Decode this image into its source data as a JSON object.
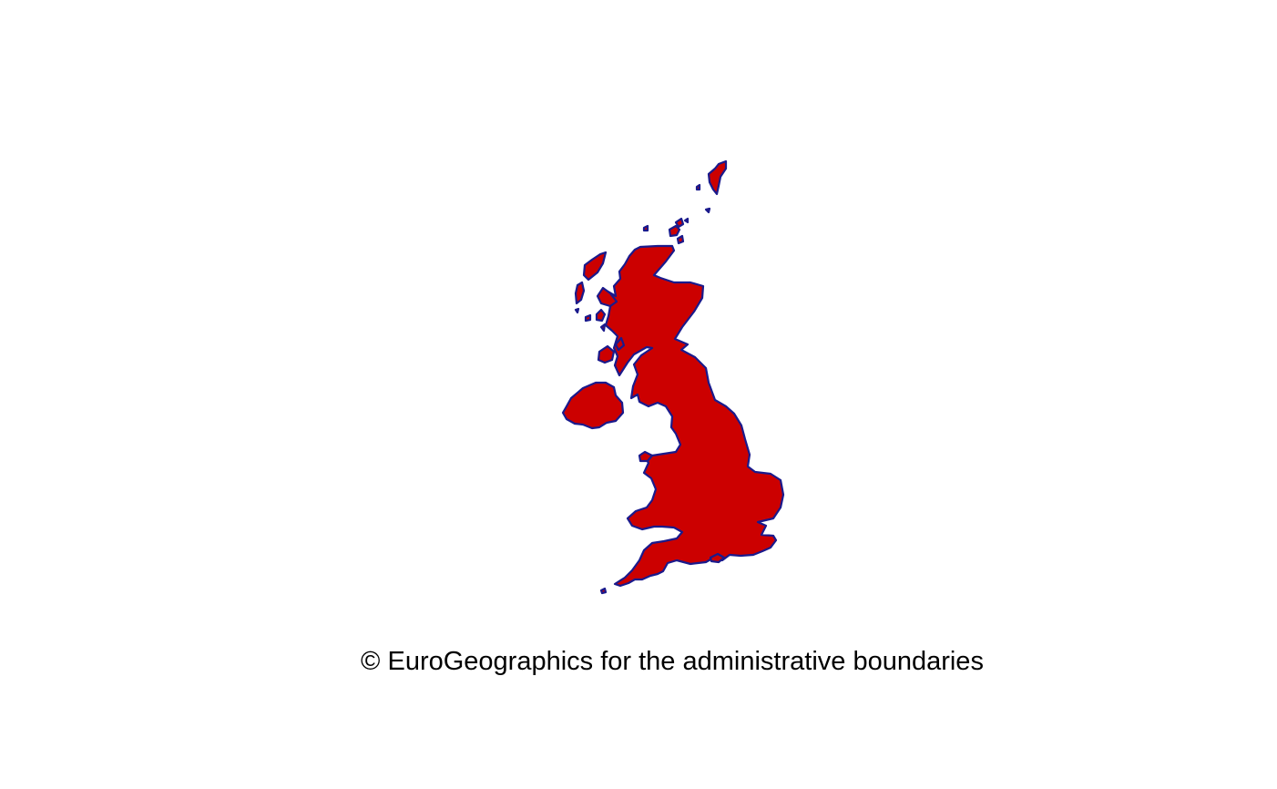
{
  "map": {
    "region": "United Kingdom",
    "fill_color": "#cc0000",
    "border_color": "#1a1a8c",
    "background_color": "#ffffff"
  },
  "attribution": {
    "text": "© EuroGeographics for the administrative boundaries"
  }
}
